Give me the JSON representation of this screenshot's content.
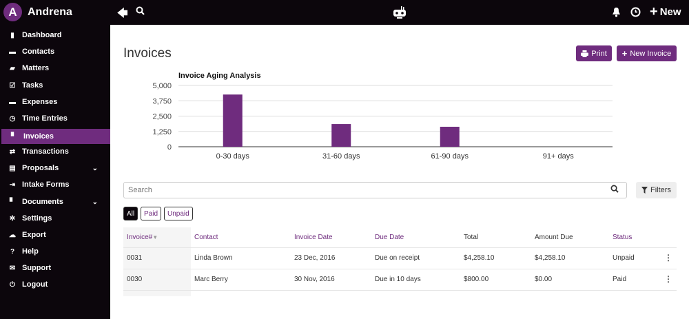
{
  "app": {
    "avatar_letter": "A",
    "name": "Andrena",
    "new_label": "New"
  },
  "topbar": {
    "icons": [
      "back-arrow-icon",
      "search-icon",
      "robot-icon",
      "bell-icon",
      "clock-icon",
      "plus-icon"
    ]
  },
  "sidebar": {
    "active": "Invoices",
    "items": [
      {
        "label": "Dashboard",
        "icon": "bar-chart-icon"
      },
      {
        "label": "Contacts",
        "icon": "id-card-icon"
      },
      {
        "label": "Matters",
        "icon": "briefcase-icon"
      },
      {
        "label": "Tasks",
        "icon": "check-square-icon"
      },
      {
        "label": "Expenses",
        "icon": "credit-card-icon"
      },
      {
        "label": "Time Entries",
        "icon": "clock-icon"
      },
      {
        "label": "Invoices",
        "icon": "file-icon"
      },
      {
        "label": "Transactions",
        "icon": "exchange-icon"
      },
      {
        "label": "Proposals",
        "icon": "list-icon",
        "expandable": true
      },
      {
        "label": "Intake Forms",
        "icon": "sign-in-icon"
      },
      {
        "label": "Documents",
        "icon": "document-icon",
        "expandable": true
      },
      {
        "label": "Settings",
        "icon": "gear-icon"
      },
      {
        "label": "Export",
        "icon": "cloud-download-icon"
      },
      {
        "label": "Help",
        "icon": "question-icon"
      },
      {
        "label": "Support",
        "icon": "envelope-icon"
      },
      {
        "label": "Logout",
        "icon": "power-icon"
      }
    ]
  },
  "page": {
    "title": "Invoices",
    "print_label": "Print",
    "new_invoice_label": "New Invoice"
  },
  "chart_data": {
    "type": "bar",
    "title": "Invoice Aging Analysis",
    "categories": [
      "0-30 days",
      "31-60 days",
      "61-90 days",
      "91+ days"
    ],
    "values": [
      4258.1,
      1850,
      1630,
      0
    ],
    "ylim": [
      0,
      5000
    ],
    "yticks": [
      "5,000",
      "3,750",
      "2,500",
      "1,250",
      "0"
    ],
    "ytick_values": [
      5000,
      3750,
      2500,
      1250,
      0
    ],
    "grid": true,
    "color": "#6f2c7e"
  },
  "search": {
    "placeholder": "Search",
    "value": ""
  },
  "filters_label": "Filters",
  "status_filters": {
    "options": [
      "All",
      "Paid",
      "Unpaid"
    ],
    "selected": "All"
  },
  "table": {
    "headers": [
      "Invoice#",
      "Contact",
      "Invoice Date",
      "Due Date",
      "Total",
      "Amount Due",
      "Status"
    ],
    "sort": {
      "column": "Invoice#",
      "direction": "desc"
    },
    "rows": [
      [
        "0031",
        "Linda Brown",
        "23 Dec, 2016",
        "Due on receipt",
        "$4,258.10",
        "$4,258.10",
        "Unpaid"
      ],
      [
        "0030",
        "Marc Berry",
        "30 Nov, 2016",
        "Due in 10 days",
        "$800.00",
        "$0.00",
        "Paid"
      ]
    ]
  },
  "colors": {
    "brand": "#6f2c7e",
    "dark": "#0c060c"
  }
}
